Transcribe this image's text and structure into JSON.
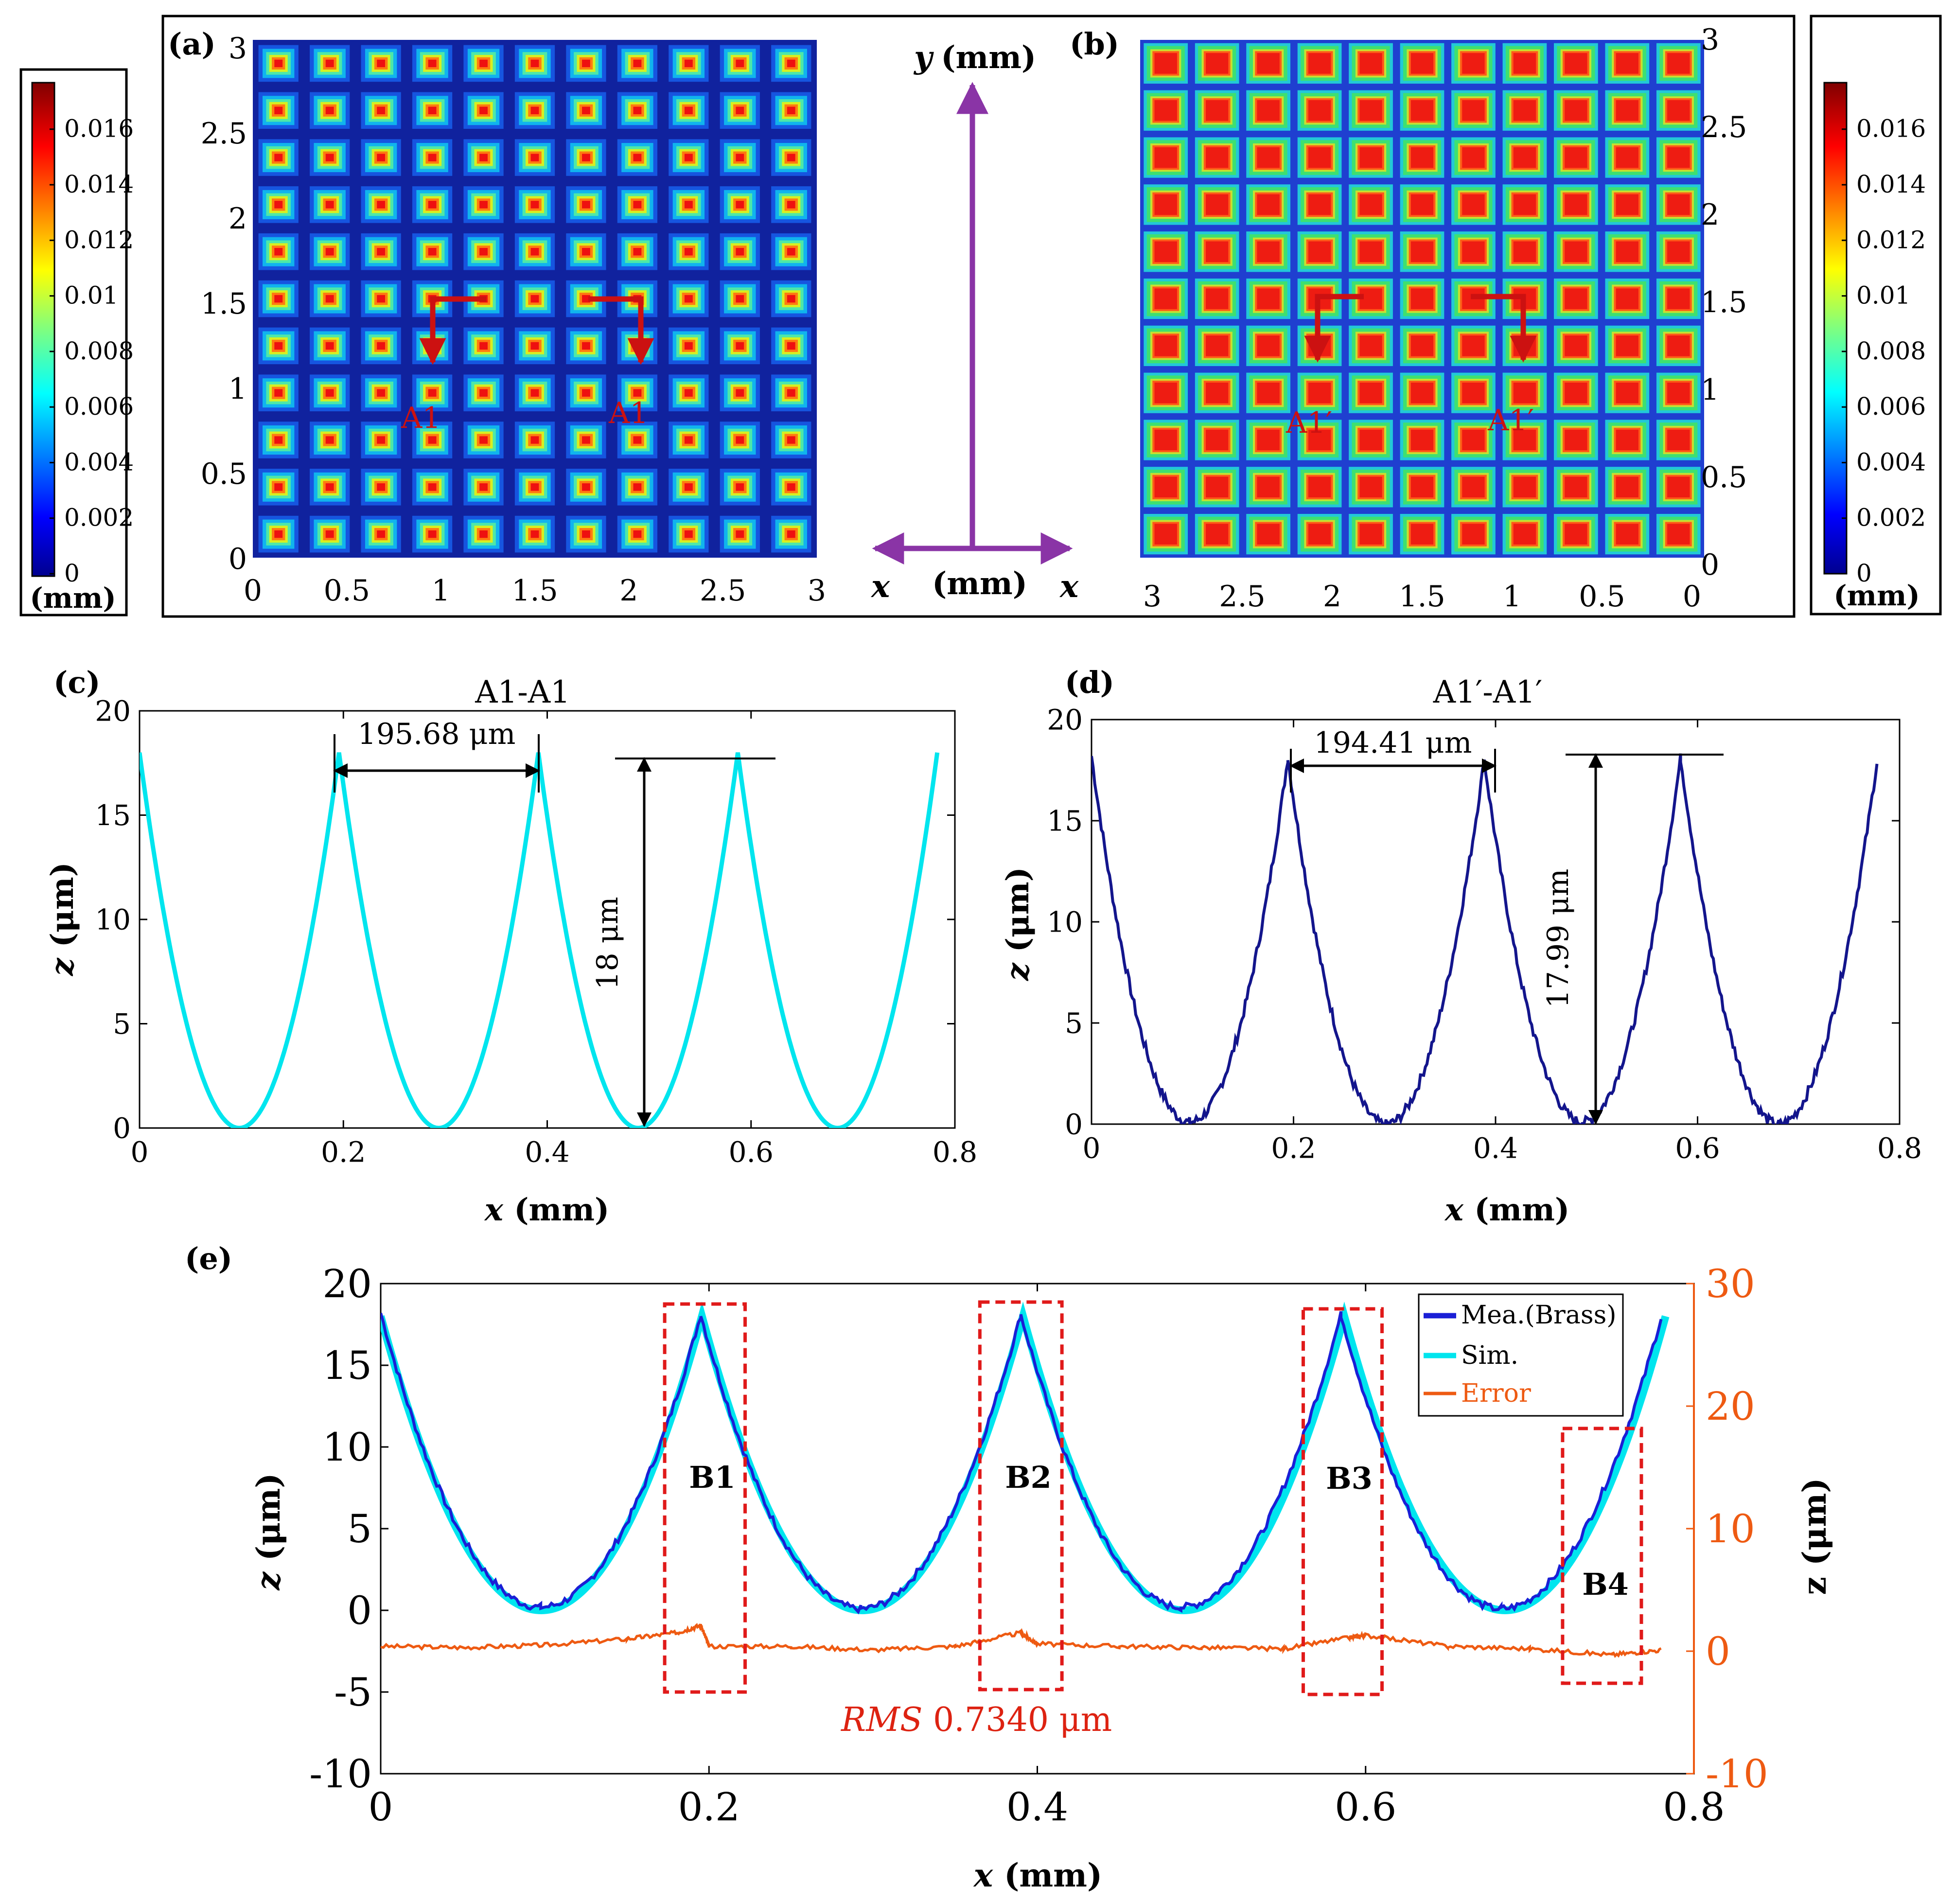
{
  "colors": {
    "cmap_blue": "#10229e",
    "cyan": "#00e5ee",
    "dark_blue": "#13158c",
    "measured_blue": "#1a1fd6",
    "error_orange": "#ee5a12",
    "red_marker": "#cc1111",
    "purple": "#8a34a6",
    "red_text": "#dd2211"
  },
  "colorbar": {
    "ticks": [
      "0",
      "0.002",
      "0.004",
      "0.006",
      "0.008",
      "0.01",
      "0.012",
      "0.014",
      "0.016"
    ],
    "unit": "(mm)"
  },
  "panel_a": {
    "label": "(a)",
    "x_ticks": [
      "0",
      "0.5",
      "1",
      "1.5",
      "2",
      "2.5",
      "3"
    ],
    "y_ticks": [
      "0",
      "0.5",
      "1",
      "1.5",
      "2",
      "2.5",
      "3"
    ],
    "marker_labels": [
      "A1",
      "A1"
    ]
  },
  "panel_b": {
    "label": "(b)",
    "x_ticks": [
      "3",
      "2.5",
      "2",
      "1.5",
      "1",
      "0.5",
      "0"
    ],
    "y_ticks": [
      "0",
      "0.5",
      "1",
      "1.5",
      "2",
      "2.5",
      "3"
    ],
    "marker_labels": [
      "A1′",
      "A1′"
    ]
  },
  "axes_sketch": {
    "y_label": "y",
    "y_unit": "(mm)",
    "x_left": "x",
    "x_unit": "(mm)",
    "x_right": "x"
  },
  "panel_c": {
    "label": "(c)",
    "title": "A1-A1",
    "xlabel_var": "x",
    "xlabel_unit": " (mm)",
    "ylabel_var": "z",
    "ylabel_unit": " (μm)",
    "spacing_label": "195.68 μm",
    "height_label": "18 μm"
  },
  "panel_d": {
    "label": "(d)",
    "title": "A1′-A1′",
    "xlabel_var": "x",
    "xlabel_unit": " (mm)",
    "ylabel_var": "z",
    "ylabel_unit": " (μm)",
    "spacing_label": "194.41 μm",
    "height_label": "17.99 μm"
  },
  "panel_e": {
    "label": "(e)",
    "xlabel_var": "x",
    "xlabel_unit": " (mm)",
    "ylabel_var": "z",
    "ylabel_unit": " (μm)",
    "y2label": "z (μm)",
    "legend": [
      "Mea.(Brass)",
      "Sim.",
      "Error"
    ],
    "boxes": [
      "B1",
      "B2",
      "B3",
      "B4"
    ],
    "rms_label_italic": "RMS",
    "rms_label_value": " 0.7340 μm"
  },
  "chart_data": [
    {
      "panel": "(c)",
      "type": "line",
      "title": "A1-A1",
      "xlabel": "x (mm)",
      "ylabel": "z (μm)",
      "xlim": [
        0,
        0.8
      ],
      "ylim": [
        0,
        20
      ],
      "x_ticks": [
        0,
        0.2,
        0.4,
        0.6,
        0.8
      ],
      "y_ticks": [
        0,
        5,
        10,
        15,
        20
      ],
      "series": [
        {
          "color": "#00e5ee",
          "x": [
            0,
            0.0978,
            0.1957,
            0.2935,
            0.3913,
            0.4892,
            0.587,
            0.6849,
            0.7827
          ],
          "y": [
            18,
            0,
            18,
            0,
            18,
            0,
            18,
            0,
            18
          ]
        }
      ]
    },
    {
      "panel": "(d)",
      "type": "line",
      "title": "A1′-A1′",
      "xlabel": "x (mm)",
      "ylabel": "z (μm)",
      "xlim": [
        0,
        0.8
      ],
      "ylim": [
        0,
        20
      ],
      "x_ticks": [
        0,
        0.2,
        0.4,
        0.6,
        0.8
      ],
      "y_ticks": [
        0,
        5,
        10,
        15,
        20
      ],
      "series": [
        {
          "color": "#13158c",
          "x": [
            0,
            0.0972,
            0.1944,
            0.2916,
            0.3888,
            0.486,
            0.5832,
            0.6804,
            0.7776
          ],
          "y": [
            18.2,
            0.1,
            18.1,
            0.0,
            18.0,
            0.1,
            18.1,
            0.0,
            17.9
          ]
        }
      ]
    },
    {
      "panel": "(e)",
      "type": "line",
      "xlabel": "x (mm)",
      "ylabel": "z (μm)",
      "y2label": "z (μm)",
      "xlim": [
        0,
        0.8
      ],
      "ylim": [
        -10,
        20
      ],
      "y2lim": [
        -10,
        30
      ],
      "x_ticks": [
        0,
        0.2,
        0.4,
        0.6,
        0.8
      ],
      "y_ticks": [
        -10,
        -5,
        0,
        5,
        10,
        15,
        20
      ],
      "y2_ticks": [
        -10,
        0,
        10,
        20,
        30
      ],
      "legend_position": "top-right",
      "series": [
        {
          "name": "Mea.(Brass)",
          "color": "#1a1fd6",
          "axis": "left",
          "x": [
            0,
            0.0975,
            0.195,
            0.2925,
            0.39,
            0.4875,
            0.585,
            0.6825,
            0.78
          ],
          "y": [
            18.2,
            0.2,
            18.1,
            0.1,
            18.1,
            0.2,
            18.1,
            0.1,
            17.9
          ]
        },
        {
          "name": "Sim.",
          "color": "#00e5ee",
          "axis": "left",
          "x": [
            0,
            0.0978,
            0.1957,
            0.2935,
            0.3913,
            0.4892,
            0.587,
            0.6849,
            0.7827
          ],
          "y": [
            18,
            0,
            18,
            0,
            18,
            0,
            18,
            0,
            18
          ]
        },
        {
          "name": "Error",
          "color": "#ee5a12",
          "axis": "right",
          "x": [
            0,
            0.05,
            0.1,
            0.15,
            0.18,
            0.195,
            0.2,
            0.25,
            0.3,
            0.35,
            0.39,
            0.4,
            0.45,
            0.5,
            0.55,
            0.59,
            0.6,
            0.65,
            0.7,
            0.75,
            0.78
          ],
          "y": [
            0.4,
            0.3,
            0.5,
            1.0,
            1.5,
            2.1,
            0.4,
            0.4,
            0.1,
            0.4,
            1.5,
            0.6,
            0.4,
            0.3,
            0.2,
            1.1,
            1.3,
            0.4,
            0.2,
            -0.3,
            0.1
          ]
        }
      ],
      "annotations": [
        "B1",
        "B2",
        "B3",
        "B4",
        "RMS 0.7340 μm"
      ]
    }
  ]
}
